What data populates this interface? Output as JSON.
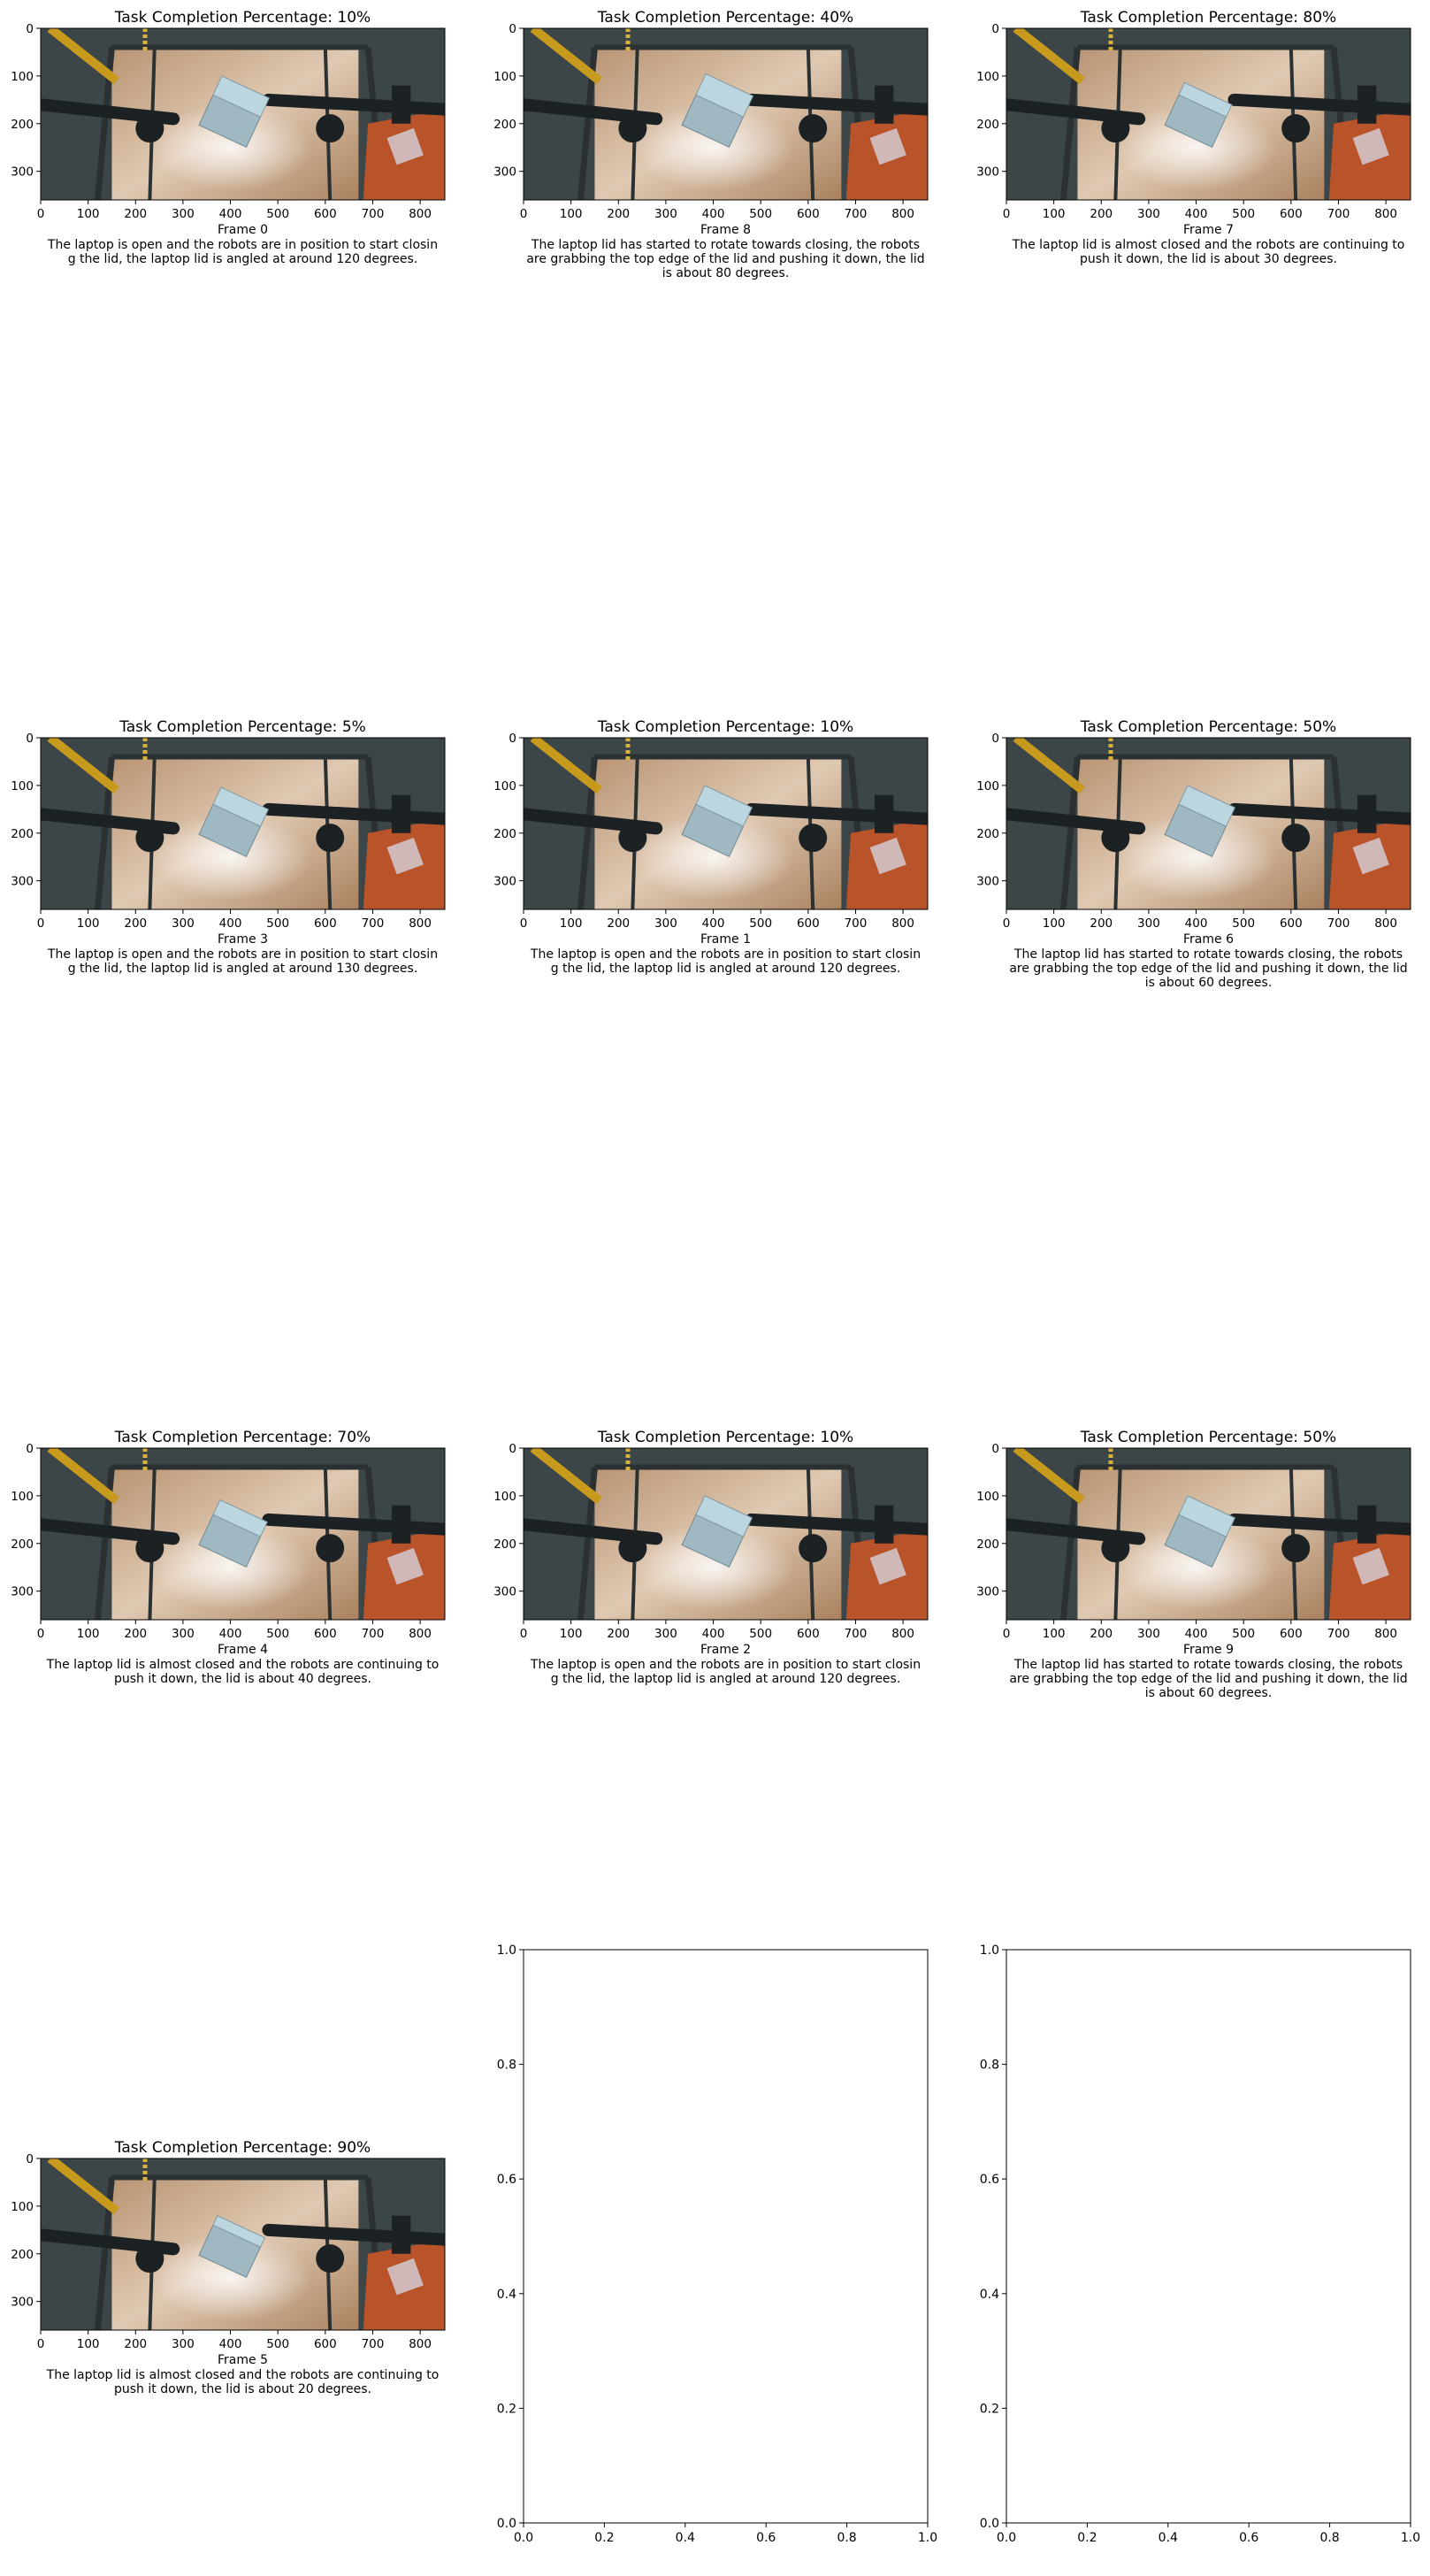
{
  "figure": {
    "panels": [
      {
        "title": "Task Completion Percentage: 10%",
        "frame_label": "Frame 0",
        "caption_lines": [
          "The laptop is open and the robots are in position to start closin",
          "g the lid, the laptop lid is angled at around 120 degrees."
        ],
        "lid_angle_deg": 120
      },
      {
        "title": "Task Completion Percentage: 40%",
        "frame_label": "Frame 8",
        "caption_lines": [
          "The laptop lid has started to rotate towards closing, the robots",
          "are grabbing the top edge of the lid and pushing it down, the lid",
          "is about 80 degrees."
        ],
        "lid_angle_deg": 80
      },
      {
        "title": "Task Completion Percentage: 80%",
        "frame_label": "Frame 7",
        "caption_lines": [
          "The laptop lid is almost closed and the robots are continuing to",
          "push it down, the lid is about 30 degrees."
        ],
        "lid_angle_deg": 30
      },
      {
        "title": "Task Completion Percentage: 5%",
        "frame_label": "Frame 3",
        "caption_lines": [
          "The laptop is open and the robots are in position to start closin",
          "g the lid, the laptop lid is angled at around 130 degrees."
        ],
        "lid_angle_deg": 130
      },
      {
        "title": "Task Completion Percentage: 10%",
        "frame_label": "Frame 1",
        "caption_lines": [
          "The laptop is open and the robots are in position to start closin",
          "g the lid, the laptop lid is angled at around 120 degrees."
        ],
        "lid_angle_deg": 120
      },
      {
        "title": "Task Completion Percentage: 50%",
        "frame_label": "Frame 6",
        "caption_lines": [
          "The laptop lid has started to rotate towards closing, the robots",
          "are grabbing the top edge of the lid and pushing it down, the lid",
          "is about 60 degrees."
        ],
        "lid_angle_deg": 60
      },
      {
        "title": "Task Completion Percentage: 70%",
        "frame_label": "Frame 4",
        "caption_lines": [
          "The laptop lid is almost closed and the robots are continuing to",
          "push it down, the lid is about 40 degrees."
        ],
        "lid_angle_deg": 40
      },
      {
        "title": "Task Completion Percentage: 10%",
        "frame_label": "Frame 2",
        "caption_lines": [
          "The laptop is open and the robots are in position to start closin",
          "g the lid, the laptop lid is angled at around 120 degrees."
        ],
        "lid_angle_deg": 120
      },
      {
        "title": "Task Completion Percentage: 50%",
        "frame_label": "Frame 9",
        "caption_lines": [
          "The laptop lid has started to rotate towards closing, the robots",
          "are grabbing the top edge of the lid and pushing it down, the lid",
          "is about 60 degrees."
        ],
        "lid_angle_deg": 60
      },
      {
        "title": "Task Completion Percentage: 90%",
        "frame_label": "Frame 5",
        "caption_lines": [
          "The laptop lid is almost closed and the robots are continuing to",
          "push it down, the lid is about 20 degrees."
        ],
        "lid_angle_deg": 20
      }
    ],
    "empty_axes_count": 2,
    "colors": {
      "text": "#000000",
      "frame": "#000000",
      "floor": "#c8a27c",
      "metal": "#2b3133",
      "laptop": "#bcd6e0",
      "orange": "#b8532a"
    }
  },
  "chart_data": {
    "type": "image_grid",
    "grid": {
      "rows": 4,
      "cols": 3
    },
    "image_axes": {
      "x_ticks": [
        0,
        100,
        200,
        300,
        400,
        500,
        600,
        700,
        800
      ],
      "y_ticks": [
        0,
        100,
        200,
        300
      ],
      "xlim": [
        0,
        852
      ],
      "ylim": [
        360,
        0
      ]
    },
    "empty_axes": {
      "x_ticks": [
        "0.0",
        "0.2",
        "0.4",
        "0.6",
        "0.8",
        "1.0"
      ],
      "y_ticks": [
        "0.0",
        "0.2",
        "0.4",
        "0.6",
        "0.8",
        "1.0"
      ],
      "xlim": [
        0,
        1
      ],
      "ylim": [
        0,
        1
      ]
    },
    "series": [
      {
        "frame": 0,
        "completion_pct": 10
      },
      {
        "frame": 8,
        "completion_pct": 40
      },
      {
        "frame": 7,
        "completion_pct": 80
      },
      {
        "frame": 3,
        "completion_pct": 5
      },
      {
        "frame": 1,
        "completion_pct": 10
      },
      {
        "frame": 6,
        "completion_pct": 50
      },
      {
        "frame": 4,
        "completion_pct": 70
      },
      {
        "frame": 2,
        "completion_pct": 10
      },
      {
        "frame": 9,
        "completion_pct": 50
      },
      {
        "frame": 5,
        "completion_pct": 90
      }
    ]
  }
}
